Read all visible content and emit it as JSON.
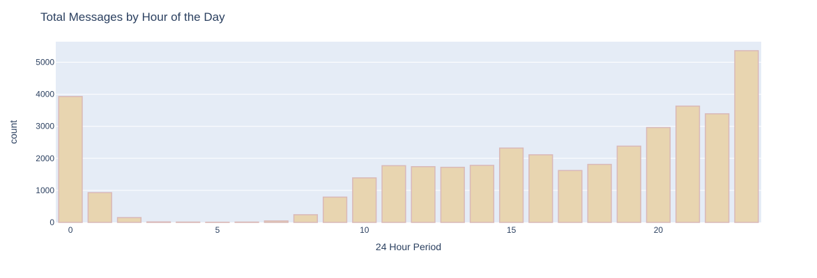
{
  "chart_data": {
    "type": "bar",
    "title": "Total Messages by Hour of the Day",
    "xlabel": "24 Hour Period",
    "ylabel": "count",
    "x": [
      0,
      1,
      2,
      3,
      4,
      5,
      6,
      7,
      8,
      9,
      10,
      11,
      12,
      13,
      14,
      15,
      16,
      17,
      18,
      19,
      20,
      21,
      22,
      23
    ],
    "values": [
      3930,
      930,
      150,
      15,
      10,
      5,
      10,
      45,
      240,
      790,
      1390,
      1770,
      1740,
      1720,
      1780,
      2320,
      2110,
      1620,
      1810,
      2380,
      2960,
      3630,
      3390,
      5360
    ],
    "xticks": [
      0,
      5,
      10,
      15,
      20
    ],
    "yticks": [
      0,
      1000,
      2000,
      3000,
      4000,
      5000
    ],
    "xlim": [
      -0.5,
      23.5
    ],
    "ylim": [
      0,
      5640
    ],
    "grid": true,
    "colors": {
      "bar_fill": "#e8d5b0",
      "bar_stroke": "#d9b8b8",
      "plot_bg": "#e5ecf6",
      "grid": "#ffffff",
      "text": "#2a3f5f"
    }
  }
}
